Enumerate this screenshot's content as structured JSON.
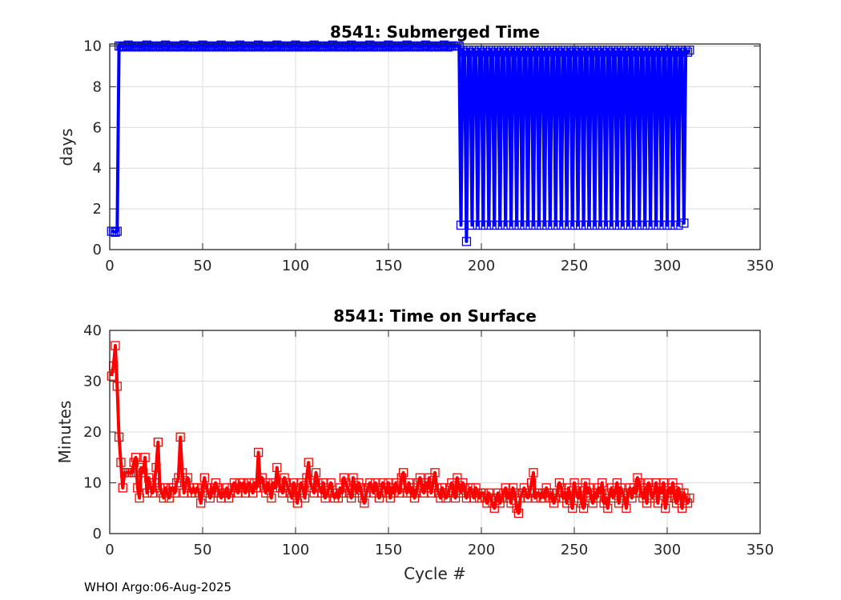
{
  "footer": "WHOI Argo:06-Aug-2025",
  "chart_data": [
    {
      "type": "line",
      "title": "8541: Submerged Time",
      "xlabel": "",
      "ylabel": "days",
      "xlim": [
        0,
        350
      ],
      "ylim": [
        0,
        10.1
      ],
      "xticks": [
        0,
        50,
        100,
        150,
        200,
        250,
        300,
        350
      ],
      "yticks": [
        0,
        2,
        4,
        6,
        8,
        10
      ],
      "grid": true,
      "color": "#0000ff",
      "marker": "square",
      "x_start": 1,
      "values": [
        0.9,
        0.9,
        0.85,
        0.9,
        10,
        10,
        9.95,
        10,
        10,
        10.05,
        10,
        9.95,
        10,
        10,
        10,
        10,
        9.95,
        10,
        10,
        10.05,
        10,
        9.95,
        10,
        10,
        10,
        10,
        9.95,
        10,
        10,
        10.05,
        10,
        9.95,
        10,
        10,
        10,
        10,
        9.95,
        10,
        10,
        10.05,
        10,
        9.95,
        10,
        10,
        10,
        10,
        9.95,
        10,
        10,
        10.05,
        10,
        9.95,
        10,
        10,
        10,
        10,
        9.95,
        10,
        10,
        10.05,
        10,
        9.95,
        10,
        10,
        10,
        10,
        9.95,
        10,
        10,
        10.05,
        10,
        9.95,
        10,
        10,
        10,
        10,
        9.95,
        10,
        10,
        10.05,
        10,
        9.95,
        10,
        10,
        10,
        10,
        9.95,
        10,
        10,
        10.05,
        10,
        9.95,
        10,
        10,
        10,
        10,
        9.95,
        10,
        10,
        10.05,
        10,
        9.95,
        10,
        10,
        10,
        10,
        9.95,
        10,
        10,
        10.05,
        10,
        9.95,
        10,
        10,
        10,
        10,
        9.95,
        10,
        10,
        10.05,
        10,
        9.95,
        10,
        10,
        10,
        10,
        9.95,
        10,
        10,
        10.05,
        10,
        9.95,
        10,
        10,
        10,
        10,
        9.95,
        10,
        10,
        10.05,
        10,
        9.95,
        10,
        10,
        10,
        10,
        9.95,
        10,
        10,
        10.05,
        10,
        9.95,
        10,
        10,
        10,
        10,
        9.95,
        10,
        10,
        10.05,
        10,
        9.95,
        10,
        10,
        10,
        10,
        9.95,
        10,
        10,
        10.05,
        10,
        9.95,
        10,
        10,
        10,
        10,
        9.95,
        10,
        10,
        10.05,
        10,
        9.95,
        10,
        10,
        10,
        10,
        10,
        10,
        1.2,
        9.8,
        9.7,
        0.4,
        9.8,
        9.7,
        1.2,
        9.8,
        9.7,
        1.2,
        9.8,
        9.7,
        1.2,
        9.8,
        9.7,
        1.2,
        9.8,
        9.7,
        1.2,
        9.8,
        9.7,
        1.2,
        9.8,
        9.7,
        1.2,
        9.8,
        9.7,
        1.2,
        9.8,
        9.7,
        1.2,
        9.8,
        9.7,
        1.2,
        9.8,
        9.7,
        1.2,
        9.8,
        9.7,
        1.2,
        9.8,
        9.7,
        1.2,
        9.8,
        9.7,
        1.2,
        9.8,
        9.7,
        1.2,
        9.8,
        9.7,
        1.2,
        9.8,
        9.7,
        1.2,
        9.8,
        9.7,
        1.2,
        9.8,
        9.7,
        1.2,
        9.8,
        9.7,
        1.2,
        9.8,
        9.7,
        1.2,
        9.8,
        9.7,
        1.2,
        9.8,
        9.7,
        1.2,
        9.8,
        9.7,
        1.2,
        9.8,
        9.7,
        1.2,
        9.8,
        9.7,
        1.2,
        9.8,
        9.7,
        1.2,
        9.8,
        9.7,
        1.2,
        9.8,
        9.7,
        1.2,
        9.8,
        9.7,
        1.2,
        9.8,
        9.7,
        1.2,
        9.8,
        9.7,
        1.2,
        9.8,
        9.7,
        1.2,
        9.8,
        9.7,
        1.2,
        9.8,
        9.7,
        1.2,
        9.8,
        9.7,
        1.2,
        9.8,
        9.7,
        1.2,
        9.8,
        9.7,
        1.2,
        9.8,
        9.7,
        1.3,
        9.8,
        9.7,
        9.8
      ]
    },
    {
      "type": "line",
      "title": "8541: Time on Surface",
      "xlabel": "Cycle #",
      "ylabel": "Minutes",
      "xlim": [
        0,
        350
      ],
      "ylim": [
        0,
        40
      ],
      "xticks": [
        0,
        50,
        100,
        150,
        200,
        250,
        300,
        350
      ],
      "yticks": [
        0,
        10,
        20,
        30,
        40
      ],
      "grid": true,
      "color": "#ff0000",
      "marker": "square",
      "x_start": 1,
      "values": [
        31,
        33,
        37,
        29,
        19,
        14,
        9,
        12,
        12,
        12,
        12,
        12,
        14,
        15,
        9,
        7,
        13,
        12,
        15,
        8,
        11,
        9,
        8,
        10,
        13,
        18,
        9,
        8,
        7,
        9,
        8,
        7,
        9,
        9,
        8,
        10,
        11,
        19,
        12,
        8,
        10,
        11,
        9,
        8,
        9,
        8,
        9,
        8,
        6,
        9,
        11,
        9,
        8,
        7,
        9,
        8,
        10,
        9,
        8,
        7,
        8,
        8,
        9,
        7,
        8,
        9,
        10,
        9,
        8,
        10,
        9,
        10,
        8,
        9,
        10,
        9,
        8,
        10,
        9,
        16,
        10,
        11,
        9,
        8,
        10,
        9,
        7,
        10,
        9,
        13,
        10,
        9,
        8,
        11,
        10,
        9,
        8,
        7,
        10,
        9,
        6,
        8,
        10,
        9,
        7,
        11,
        14,
        10,
        9,
        8,
        12,
        10,
        9,
        8,
        10,
        7,
        8,
        9,
        10,
        8,
        7,
        8,
        7,
        9,
        8,
        11,
        10,
        9,
        8,
        7,
        11,
        9,
        8,
        10,
        9,
        7,
        6,
        8,
        9,
        10,
        9,
        8,
        10,
        9,
        7,
        8,
        10,
        9,
        8,
        10,
        7,
        9,
        8,
        10,
        9,
        8,
        11,
        12,
        9,
        8,
        10,
        8,
        9,
        7,
        8,
        10,
        11,
        9,
        8,
        10,
        9,
        11,
        8,
        10,
        12,
        9,
        8,
        7,
        9,
        8,
        7,
        8,
        9,
        10,
        8,
        7,
        11,
        9,
        8,
        10,
        9,
        7,
        8,
        9,
        8,
        7,
        9,
        8,
        7,
        8,
        8,
        7,
        6,
        8,
        7,
        6,
        5,
        7,
        8,
        6,
        7,
        8,
        9,
        7,
        8,
        6,
        9,
        8,
        5,
        4,
        7,
        8,
        9,
        8,
        7,
        8,
        10,
        12,
        7,
        8,
        8,
        7,
        8,
        7,
        9,
        8,
        7,
        8,
        6,
        7,
        8,
        10,
        9,
        7,
        8,
        6,
        9,
        7,
        5,
        10,
        8,
        7,
        9,
        6,
        5,
        10,
        8,
        9,
        7,
        6,
        8,
        7,
        9,
        8,
        10,
        6,
        7,
        5,
        8,
        9,
        7,
        8,
        10,
        6,
        9,
        8,
        7,
        5,
        8,
        9,
        7,
        9,
        8,
        11,
        10,
        8,
        7,
        9,
        6,
        10,
        9,
        7,
        8,
        10,
        6,
        9,
        8,
        10,
        5,
        7,
        9,
        8,
        10,
        7,
        6,
        9,
        8,
        5,
        8,
        7,
        6,
        7
      ]
    }
  ]
}
